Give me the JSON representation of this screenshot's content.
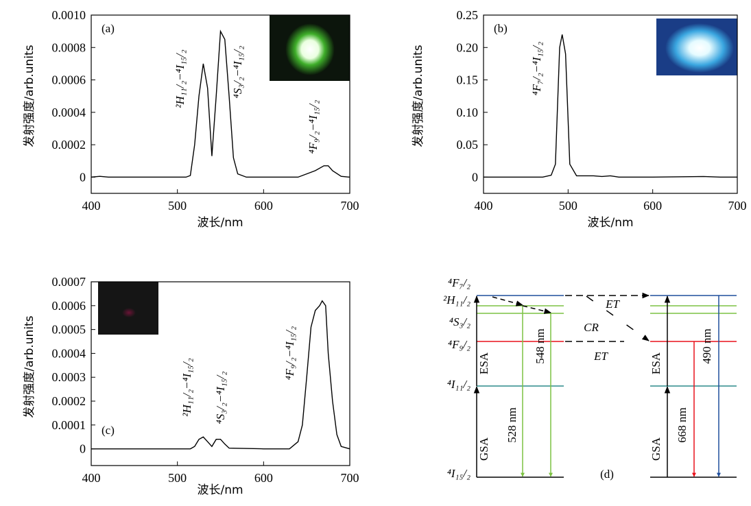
{
  "chart_data": [
    {
      "type": "line",
      "panel": "(a)",
      "ylabel": "发射强度/arb.units",
      "xlabel": "波长/nm",
      "color": "#000000",
      "xlim": [
        400,
        700
      ],
      "xticks": [
        400,
        500,
        600,
        700
      ],
      "ylim": [
        -0.0001,
        0.001
      ],
      "yticks": [
        0,
        0.0002,
        0.0004,
        0.0006,
        0.0008,
        {
          "value": 0.001,
          "label": "0.0010"
        }
      ],
      "annotations": [
        "²H₁₁/₂−⁴I₁₅/₂",
        "⁴S₃/₂−⁴I₁₅/₂",
        "⁴F₉/₂−⁴I₁₅/₂"
      ],
      "x": [
        400,
        410,
        420,
        450,
        480,
        510,
        515,
        520,
        525,
        530,
        535,
        540,
        545,
        550,
        555,
        560,
        565,
        570,
        580,
        600,
        640,
        650,
        660,
        670,
        675,
        680,
        690,
        700
      ],
      "values": [
        0,
        5e-06,
        0,
        0,
        0,
        0,
        1e-05,
        0.0002,
        0.0005,
        0.0007,
        0.00055,
        0.00013,
        0.0005,
        0.0009,
        0.00085,
        0.0005,
        0.00012,
        2e-05,
        0,
        0,
        0,
        2e-05,
        4e-05,
        7e-05,
        7e-05,
        4e-05,
        5e-06,
        0
      ]
    },
    {
      "type": "line",
      "panel": "(b)",
      "ylabel": "发射强度/arb.units",
      "xlabel": "波长/nm",
      "color": "#000000",
      "xlim": [
        400,
        700
      ],
      "xticks": [
        400,
        500,
        600,
        700
      ],
      "ylim": [
        -0.025,
        0.25
      ],
      "yticks": [
        0,
        0.05,
        {
          "value": 0.1,
          "label": "0.10"
        },
        0.15,
        {
          "value": 0.2,
          "label": "0.20"
        },
        0.25
      ],
      "annotations": [
        "⁴F₇/₂−⁴I₁₅/₂"
      ],
      "x": [
        400,
        470,
        480,
        485,
        490,
        493,
        497,
        502,
        510,
        530,
        540,
        550,
        560,
        600,
        660,
        680,
        700
      ],
      "values": [
        0,
        0,
        0.003,
        0.02,
        0.2,
        0.22,
        0.19,
        0.02,
        0.002,
        0.002,
        0.001,
        0.002,
        0,
        0,
        0.001,
        0,
        0
      ]
    },
    {
      "type": "line",
      "panel": "(c)",
      "ylabel": "发射强度/arb.units",
      "xlabel": "波长/nm",
      "color": "#000000",
      "xlim": [
        400,
        700
      ],
      "xticks": [
        400,
        500,
        600,
        700
      ],
      "ylim": [
        -7e-05,
        0.0007
      ],
      "yticks": [
        0,
        0.0001,
        0.0002,
        0.0003,
        0.0004,
        0.0005,
        0.0006,
        0.0007
      ],
      "annotations": [
        "²H₁₁/₂−⁴I₁₅/₂",
        "⁴S₃/₂−⁴I₁₅/₂",
        "⁴F₉/₂−⁴I₁₅/₂"
      ],
      "x": [
        400,
        515,
        520,
        525,
        530,
        535,
        540,
        545,
        550,
        555,
        560,
        600,
        630,
        640,
        645,
        650,
        655,
        660,
        665,
        668,
        672,
        675,
        680,
        685,
        690,
        700
      ],
      "values": [
        0,
        0,
        1e-05,
        4e-05,
        5e-05,
        3e-05,
        1e-05,
        4e-05,
        4e-05,
        2e-05,
        3e-06,
        0,
        0,
        3e-05,
        0.0001,
        0.0003,
        0.00051,
        0.00058,
        0.0006,
        0.00062,
        0.0006,
        0.0004,
        0.0002,
        6e-05,
        1e-05,
        0
      ]
    }
  ],
  "diagram": {
    "panel": "(d)",
    "levels": [
      "⁴F₇/₂",
      "²H₁₁/₂",
      "⁴S₃/₂",
      "⁴F₉/₂",
      "⁴I₁₁/₂",
      "⁴I₁₅/₂"
    ],
    "labels": [
      "ESA",
      "GSA",
      "528 nm",
      "548 nm",
      "ET",
      "CR",
      "ET",
      "ESA",
      "GSA",
      "668 nm",
      "490 nm"
    ]
  }
}
